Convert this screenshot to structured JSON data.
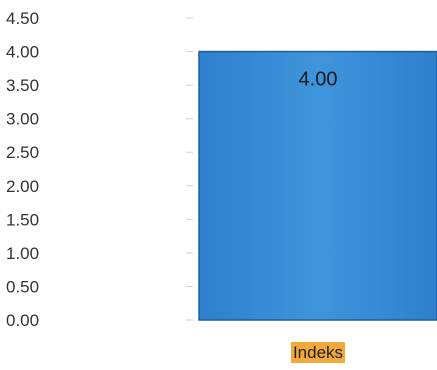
{
  "chart_data": {
    "type": "bar",
    "categories": [
      "Indeks"
    ],
    "values": [
      4.0
    ],
    "data_labels": [
      "4.00"
    ],
    "title": "",
    "xlabel": "",
    "ylabel": "",
    "ylim": [
      0,
      4.5
    ],
    "y_ticks": [
      "0.00",
      "0.50",
      "1.00",
      "1.50",
      "2.00",
      "2.50",
      "3.00",
      "3.50",
      "4.00",
      "4.50"
    ],
    "grid": false,
    "legend": "none"
  },
  "colors": {
    "bar_fill": "#3a8fd6",
    "bar_edge": "#1f5f99",
    "category_highlight": "#f2a93b"
  }
}
